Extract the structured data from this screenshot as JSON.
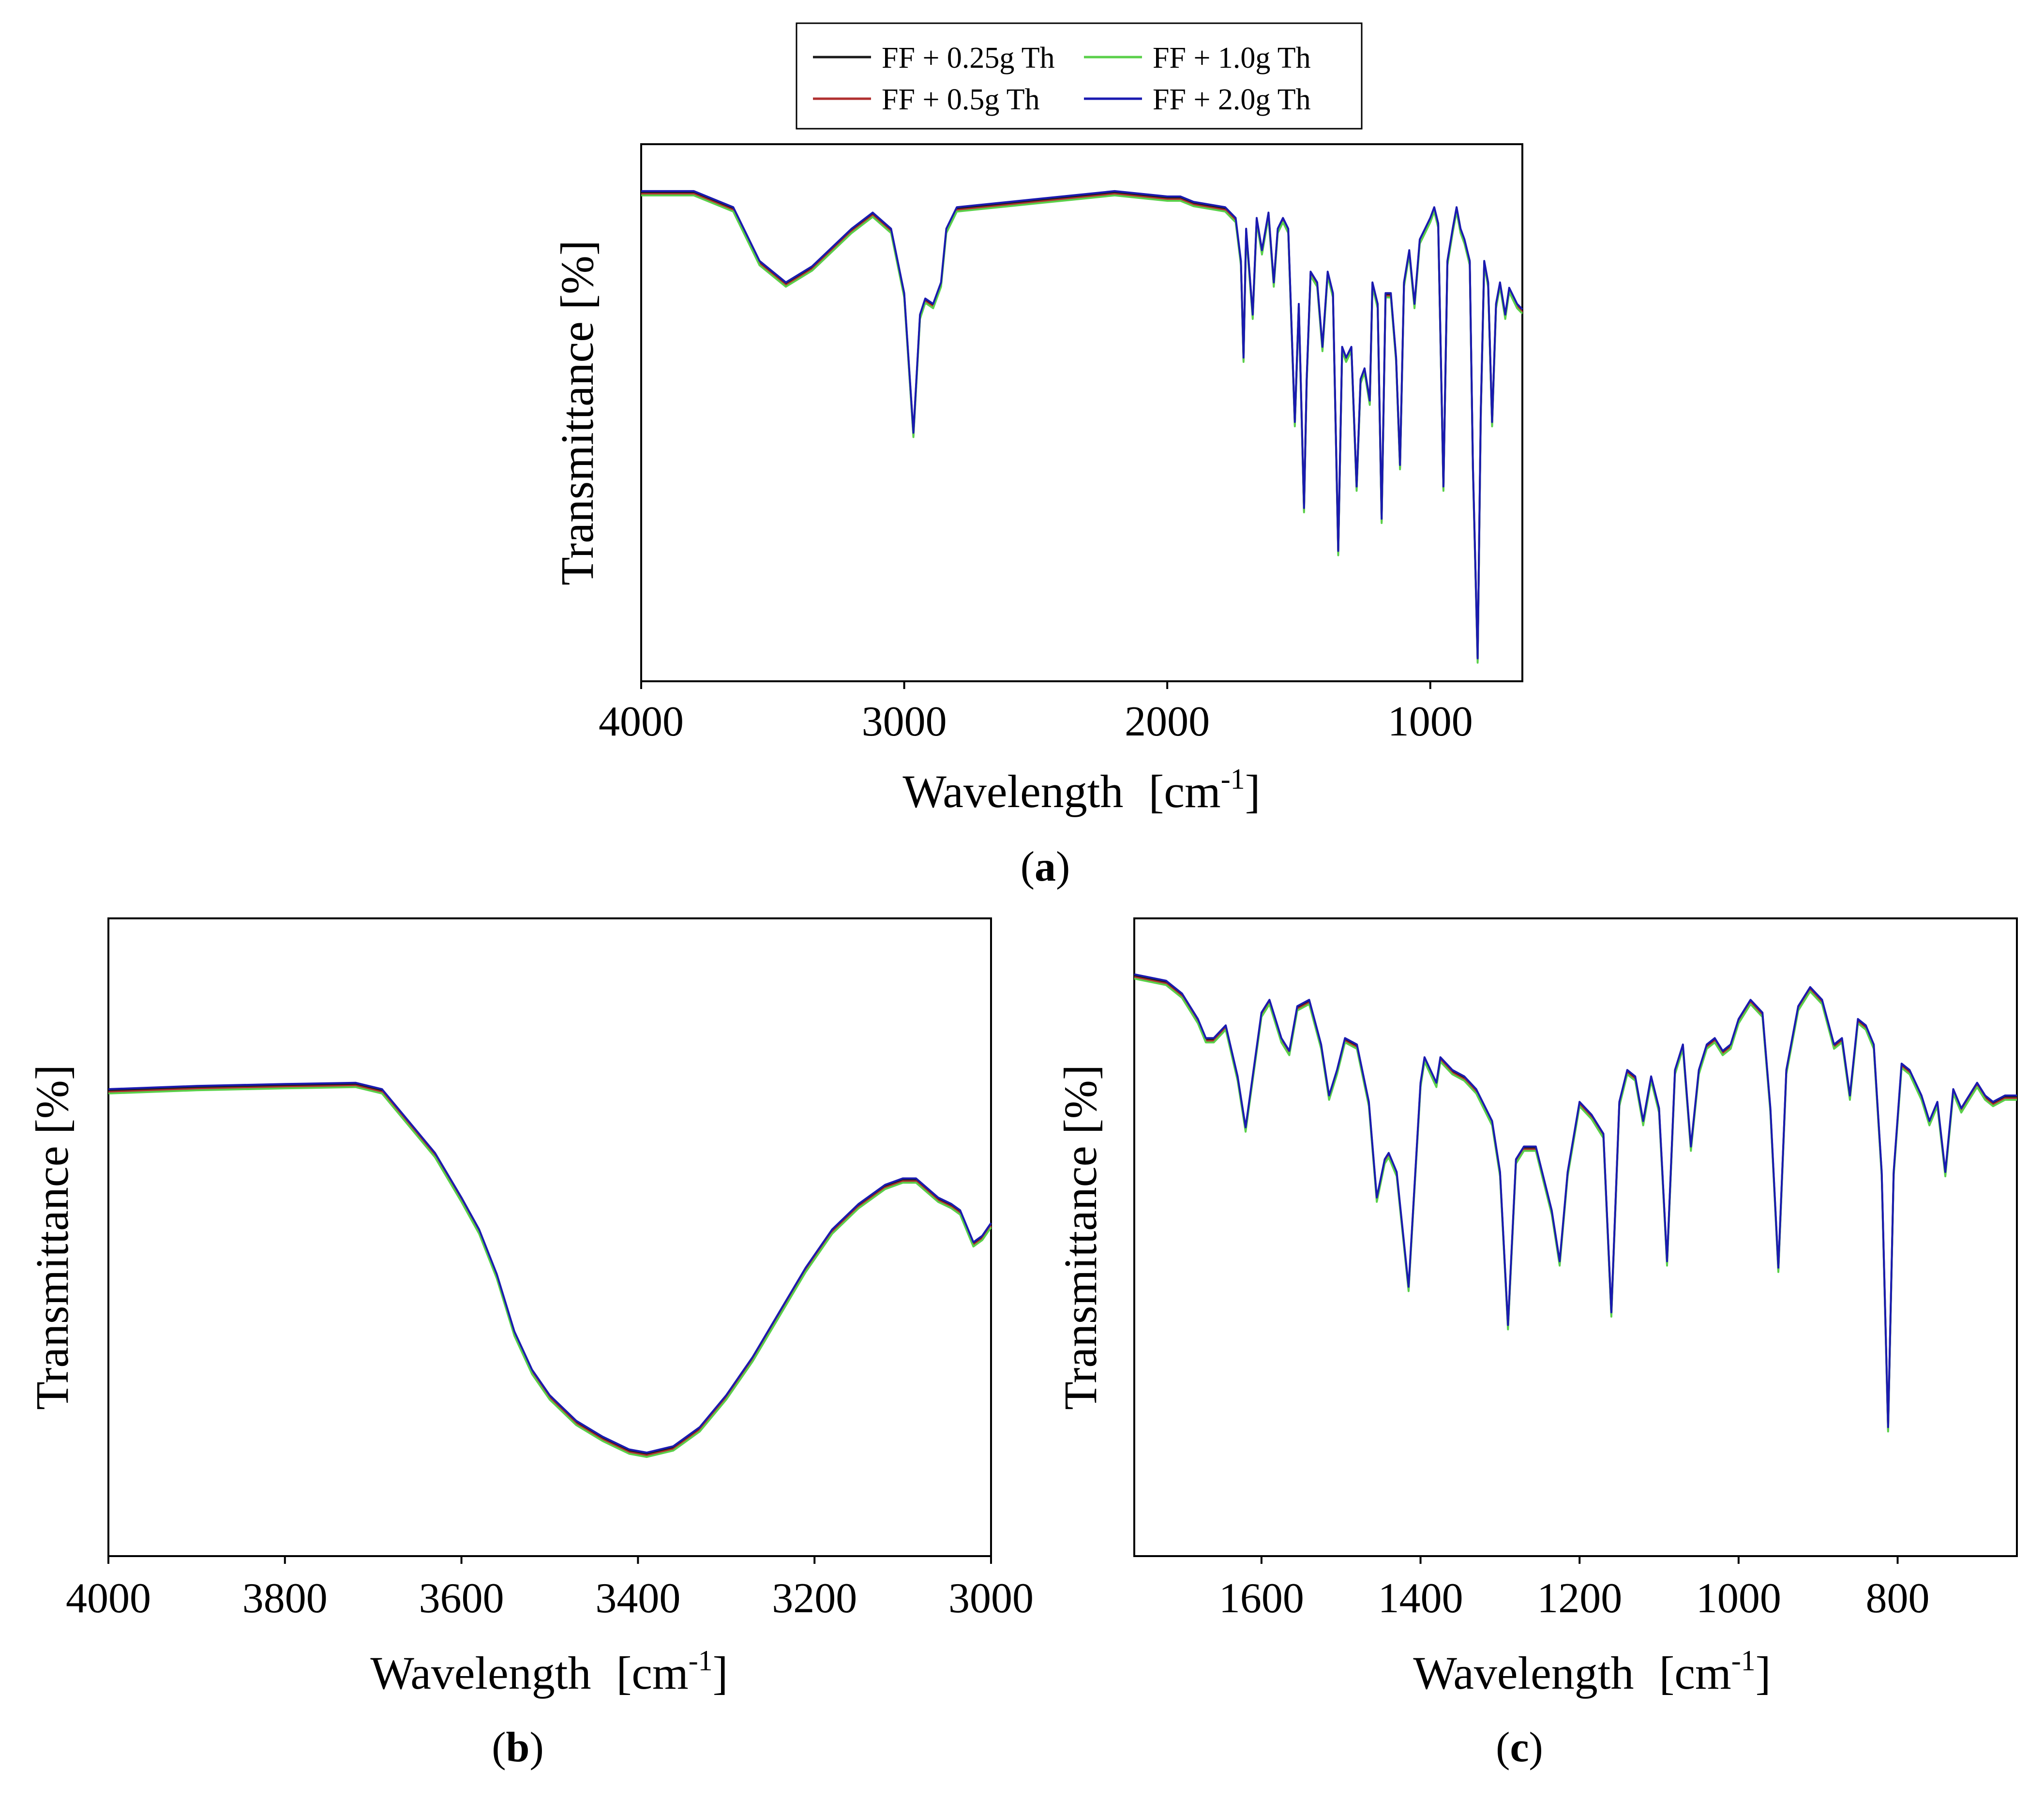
{
  "legend": {
    "entries": [
      {
        "label": "FF + 0.25g Th",
        "color": "#1a1a1a"
      },
      {
        "label": "FF + 1.0g Th",
        "color": "#5ad04a"
      },
      {
        "label": "FF + 0.5g Th",
        "color": "#b03030"
      },
      {
        "label": "FF + 2.0g Th",
        "color": "#1a1ab0"
      }
    ]
  },
  "chart_data": [
    {
      "id": "a",
      "type": "line",
      "caption": "a",
      "xlabel": "Wavelength",
      "xunit_base": "[cm",
      "xunit_sup": "-1",
      "xunit_end": "]",
      "ylabel": "Transmittance [%]",
      "xlim": [
        4000,
        650
      ],
      "ylim": [
        0,
        100
      ],
      "xticks": [
        4000,
        3000,
        2000,
        1000
      ],
      "tick_labels": [
        "4000",
        "3000",
        "2000",
        "1000"
      ],
      "baseline_points": [
        [
          4000,
          91
        ],
        [
          3800,
          91
        ],
        [
          3650,
          88
        ],
        [
          3550,
          78
        ],
        [
          3450,
          74
        ],
        [
          3350,
          77
        ],
        [
          3200,
          84
        ],
        [
          3120,
          87
        ],
        [
          3050,
          84
        ],
        [
          3000,
          72
        ],
        [
          2965,
          46
        ],
        [
          2940,
          68
        ],
        [
          2920,
          71
        ],
        [
          2890,
          70
        ],
        [
          2860,
          74
        ],
        [
          2840,
          84
        ],
        [
          2800,
          88
        ],
        [
          2600,
          89
        ],
        [
          2400,
          90
        ],
        [
          2200,
          91
        ],
        [
          2000,
          90
        ],
        [
          1950,
          90
        ],
        [
          1900,
          89
        ],
        [
          1780,
          88
        ],
        [
          1740,
          86
        ],
        [
          1720,
          78
        ],
        [
          1710,
          60
        ],
        [
          1700,
          84
        ],
        [
          1675,
          68
        ],
        [
          1660,
          86
        ],
        [
          1640,
          80
        ],
        [
          1615,
          87
        ],
        [
          1595,
          74
        ],
        [
          1580,
          84
        ],
        [
          1560,
          86
        ],
        [
          1540,
          84
        ],
        [
          1515,
          48
        ],
        [
          1500,
          70
        ],
        [
          1480,
          32
        ],
        [
          1470,
          56
        ],
        [
          1455,
          76
        ],
        [
          1430,
          74
        ],
        [
          1410,
          62
        ],
        [
          1390,
          76
        ],
        [
          1370,
          72
        ],
        [
          1350,
          24
        ],
        [
          1335,
          62
        ],
        [
          1320,
          60
        ],
        [
          1300,
          62
        ],
        [
          1280,
          36
        ],
        [
          1265,
          56
        ],
        [
          1250,
          58
        ],
        [
          1230,
          52
        ],
        [
          1220,
          74
        ],
        [
          1200,
          70
        ],
        [
          1185,
          30
        ],
        [
          1170,
          72
        ],
        [
          1150,
          72
        ],
        [
          1130,
          60
        ],
        [
          1115,
          40
        ],
        [
          1100,
          74
        ],
        [
          1080,
          80
        ],
        [
          1060,
          70
        ],
        [
          1040,
          82
        ],
        [
          1020,
          84
        ],
        [
          1000,
          86
        ],
        [
          985,
          88
        ],
        [
          970,
          85
        ],
        [
          950,
          36
        ],
        [
          935,
          78
        ],
        [
          915,
          84
        ],
        [
          900,
          88
        ],
        [
          885,
          84
        ],
        [
          870,
          82
        ],
        [
          850,
          78
        ],
        [
          838,
          40
        ],
        [
          820,
          4
        ],
        [
          808,
          50
        ],
        [
          795,
          78
        ],
        [
          780,
          74
        ],
        [
          765,
          48
        ],
        [
          750,
          70
        ],
        [
          735,
          74
        ],
        [
          715,
          68
        ],
        [
          700,
          73
        ],
        [
          670,
          70
        ],
        [
          650,
          69
        ]
      ],
      "series": [
        {
          "name": "FF + 0.25g Th"
        },
        {
          "name": "FF + 0.5g Th"
        },
        {
          "name": "FF + 1.0g Th"
        },
        {
          "name": "FF + 2.0g Th"
        }
      ]
    },
    {
      "id": "b",
      "type": "line",
      "caption": "b",
      "xlabel": "Wavelength",
      "xunit_base": "[cm",
      "xunit_sup": "-1",
      "xunit_end": "]",
      "ylabel": "Transmittance [%]",
      "xlim": [
        4000,
        3000
      ],
      "ylim": [
        0,
        100
      ],
      "xticks": [
        4000,
        3800,
        3600,
        3400,
        3200,
        3000
      ],
      "tick_labels": [
        "4000",
        "3800",
        "3600",
        "3400",
        "3200",
        "3000"
      ],
      "baseline_points": [
        [
          4000,
          73
        ],
        [
          3900,
          73.5
        ],
        [
          3800,
          73.8
        ],
        [
          3720,
          74
        ],
        [
          3690,
          73
        ],
        [
          3660,
          68
        ],
        [
          3630,
          63
        ],
        [
          3600,
          56
        ],
        [
          3580,
          51
        ],
        [
          3560,
          44
        ],
        [
          3540,
          35
        ],
        [
          3520,
          29
        ],
        [
          3500,
          25
        ],
        [
          3470,
          21
        ],
        [
          3440,
          18.5
        ],
        [
          3410,
          16.5
        ],
        [
          3390,
          16
        ],
        [
          3360,
          17
        ],
        [
          3330,
          20
        ],
        [
          3300,
          25
        ],
        [
          3270,
          31
        ],
        [
          3240,
          38
        ],
        [
          3210,
          45
        ],
        [
          3180,
          51
        ],
        [
          3150,
          55
        ],
        [
          3120,
          58
        ],
        [
          3100,
          59
        ],
        [
          3085,
          59
        ],
        [
          3060,
          56
        ],
        [
          3045,
          55
        ],
        [
          3035,
          54
        ],
        [
          3020,
          49
        ],
        [
          3010,
          50
        ],
        [
          3000,
          52
        ]
      ],
      "series": [
        {
          "name": "FF + 0.25g Th"
        },
        {
          "name": "FF + 0.5g Th"
        },
        {
          "name": "FF + 1.0g Th"
        },
        {
          "name": "FF + 2.0g Th"
        }
      ]
    },
    {
      "id": "c",
      "type": "line",
      "caption": "c",
      "xlabel": "Wavelength",
      "xunit_base": "[cm",
      "xunit_sup": "-1",
      "xunit_end": "]",
      "ylabel": "Transmittance [%]",
      "xlim": [
        1760,
        650
      ],
      "ylim": [
        0,
        100
      ],
      "xticks": [
        1600,
        1400,
        1200,
        1000,
        800
      ],
      "tick_labels": [
        "1600",
        "1400",
        "1200",
        "1000",
        "800"
      ],
      "baseline_points": [
        [
          1760,
          91
        ],
        [
          1720,
          90
        ],
        [
          1700,
          88
        ],
        [
          1680,
          84
        ],
        [
          1670,
          81
        ],
        [
          1660,
          81
        ],
        [
          1645,
          83
        ],
        [
          1630,
          75
        ],
        [
          1620,
          67
        ],
        [
          1600,
          85
        ],
        [
          1590,
          87
        ],
        [
          1575,
          81
        ],
        [
          1565,
          79
        ],
        [
          1555,
          86
        ],
        [
          1540,
          87
        ],
        [
          1525,
          80
        ],
        [
          1515,
          72
        ],
        [
          1505,
          76
        ],
        [
          1495,
          81
        ],
        [
          1480,
          80
        ],
        [
          1465,
          71
        ],
        [
          1455,
          56
        ],
        [
          1445,
          62
        ],
        [
          1440,
          63
        ],
        [
          1430,
          60
        ],
        [
          1415,
          42
        ],
        [
          1400,
          74
        ],
        [
          1395,
          78
        ],
        [
          1380,
          74
        ],
        [
          1375,
          78
        ],
        [
          1360,
          76
        ],
        [
          1345,
          75
        ],
        [
          1330,
          73
        ],
        [
          1310,
          68
        ],
        [
          1300,
          60
        ],
        [
          1290,
          36
        ],
        [
          1280,
          62
        ],
        [
          1270,
          64
        ],
        [
          1255,
          64
        ],
        [
          1235,
          54
        ],
        [
          1225,
          46
        ],
        [
          1215,
          60
        ],
        [
          1200,
          71
        ],
        [
          1185,
          69
        ],
        [
          1170,
          66
        ],
        [
          1160,
          38
        ],
        [
          1150,
          71
        ],
        [
          1140,
          76
        ],
        [
          1130,
          75
        ],
        [
          1120,
          68
        ],
        [
          1110,
          75
        ],
        [
          1100,
          70
        ],
        [
          1090,
          46
        ],
        [
          1080,
          76
        ],
        [
          1070,
          80
        ],
        [
          1060,
          64
        ],
        [
          1050,
          76
        ],
        [
          1040,
          80
        ],
        [
          1030,
          81
        ],
        [
          1020,
          79
        ],
        [
          1010,
          80
        ],
        [
          1000,
          84
        ],
        [
          985,
          87
        ],
        [
          970,
          85
        ],
        [
          960,
          70
        ],
        [
          950,
          45
        ],
        [
          940,
          76
        ],
        [
          925,
          86
        ],
        [
          910,
          89
        ],
        [
          895,
          87
        ],
        [
          880,
          80
        ],
        [
          870,
          81
        ],
        [
          860,
          72
        ],
        [
          850,
          84
        ],
        [
          840,
          83
        ],
        [
          830,
          80
        ],
        [
          820,
          60
        ],
        [
          812,
          20
        ],
        [
          805,
          60
        ],
        [
          795,
          77
        ],
        [
          785,
          76
        ],
        [
          770,
          72
        ],
        [
          760,
          68
        ],
        [
          750,
          71
        ],
        [
          740,
          60
        ],
        [
          730,
          73
        ],
        [
          720,
          70
        ],
        [
          710,
          72
        ],
        [
          700,
          74
        ],
        [
          690,
          72
        ],
        [
          680,
          71
        ],
        [
          665,
          72
        ],
        [
          650,
          72
        ]
      ],
      "series": [
        {
          "name": "FF + 0.25g Th"
        },
        {
          "name": "FF + 0.5g Th"
        },
        {
          "name": "FF + 1.0g Th"
        },
        {
          "name": "FF + 2.0g Th"
        }
      ]
    }
  ]
}
